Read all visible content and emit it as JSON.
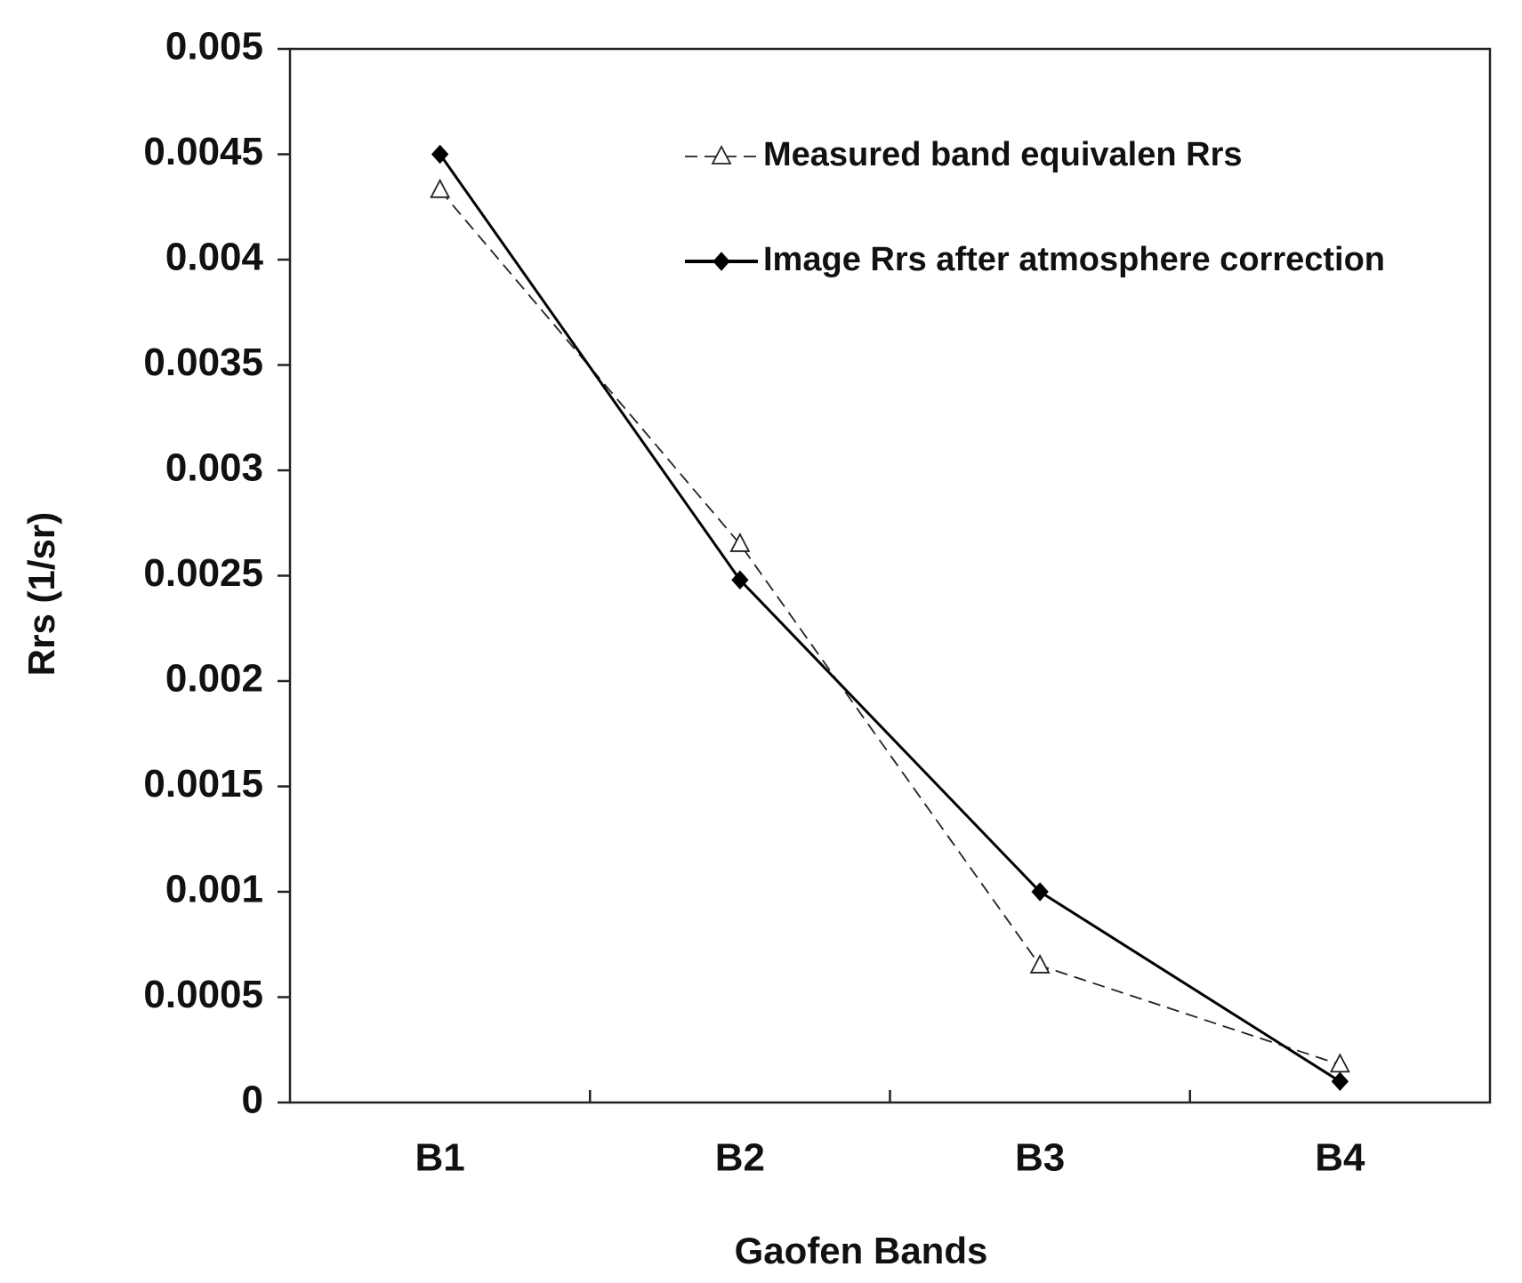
{
  "chart_data": {
    "type": "line",
    "x_label": "Gaofen Bands",
    "y_label": "Rrs (1/sr)",
    "categories": [
      "B1",
      "B2",
      "B3",
      "B4"
    ],
    "series": [
      {
        "name": "Measured band equivalen Rrs",
        "color": "#222222",
        "dash": true,
        "marker": "triangle",
        "values": [
          0.00433,
          0.00265,
          0.00065,
          0.00018
        ]
      },
      {
        "name": "Image Rrs after atmosphere correction",
        "color": "#000000",
        "dash": false,
        "marker": "diamond",
        "values": [
          0.0045,
          0.00248,
          0.001,
          0.0001
        ]
      }
    ],
    "ylim": [
      0,
      0.005
    ],
    "yticks": [
      0,
      0.0005,
      0.001,
      0.0015,
      0.002,
      0.0025,
      0.003,
      0.0035,
      0.004,
      0.0045,
      0.005
    ],
    "grid": false,
    "legend": "upper right"
  }
}
